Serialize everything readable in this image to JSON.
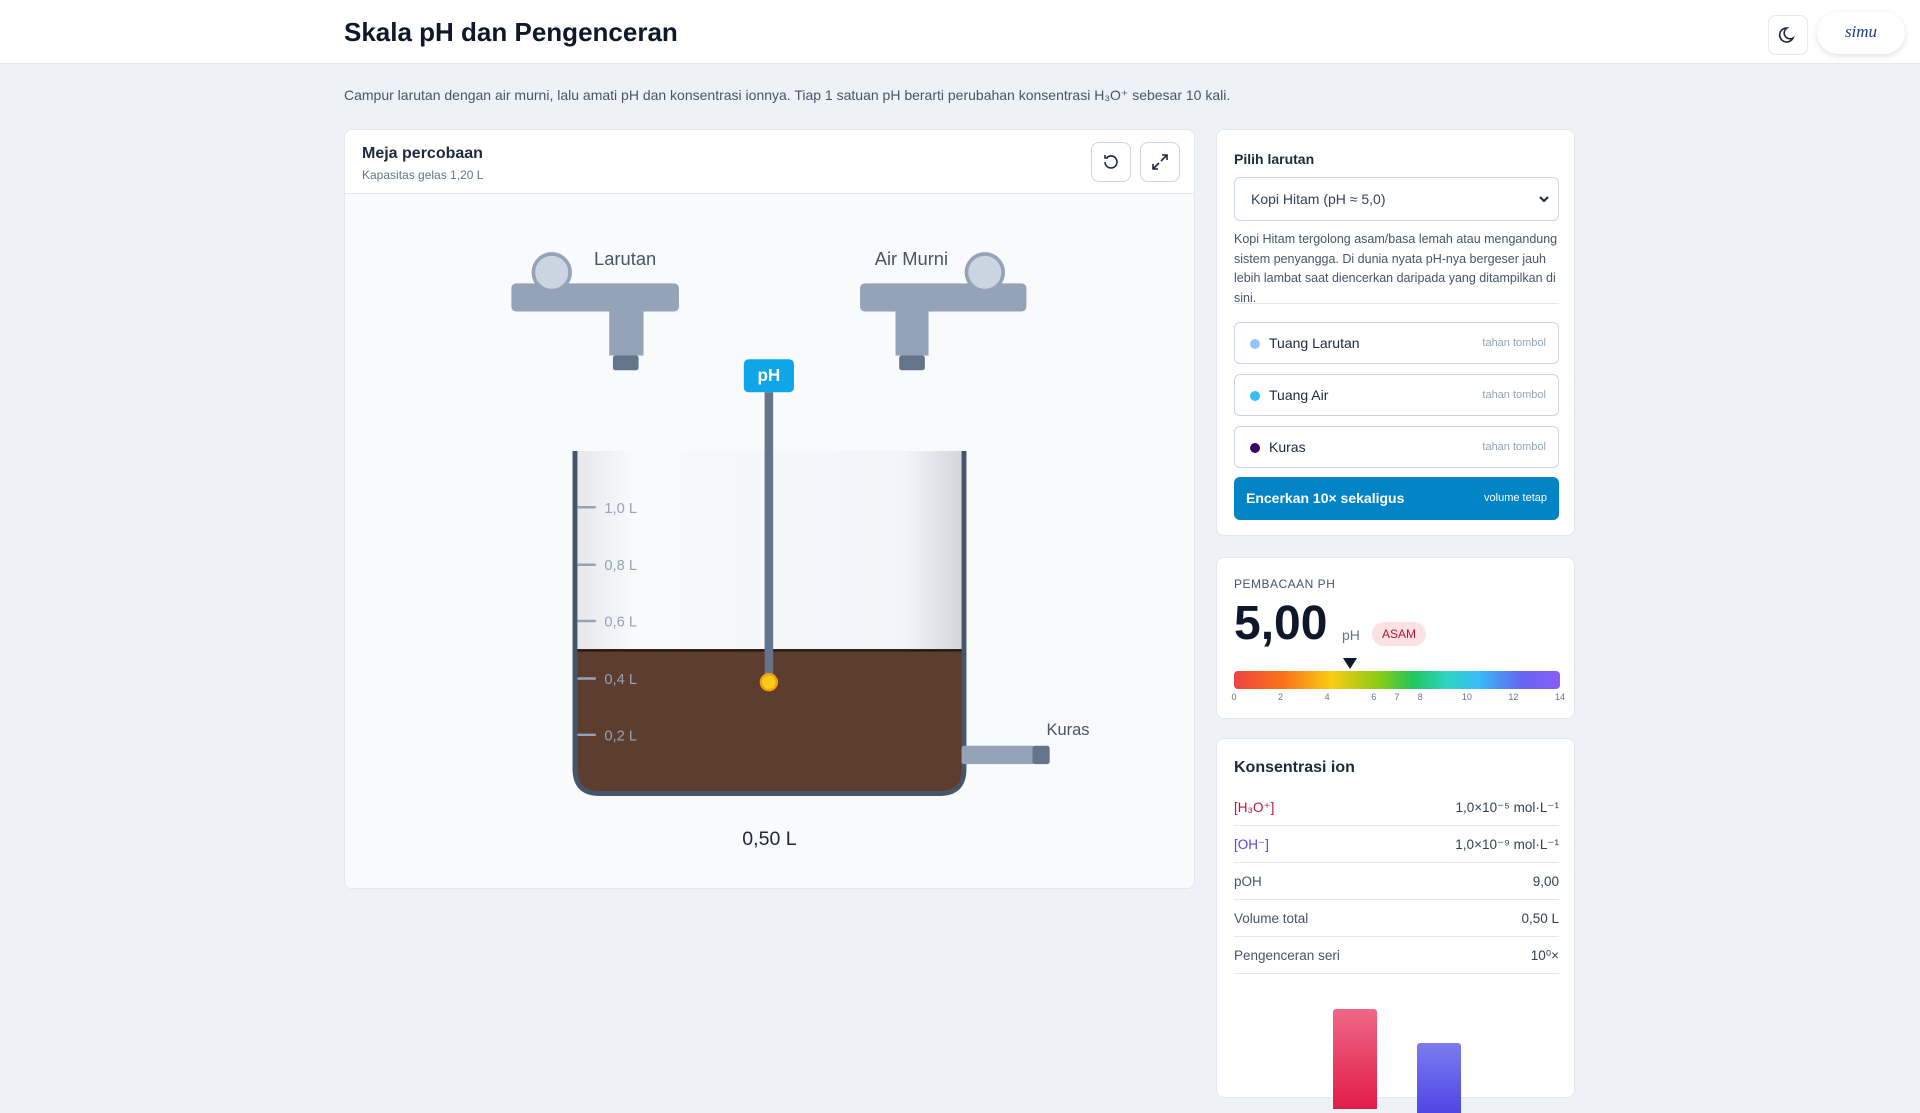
{
  "header": {
    "title": "Skala pH dan Pengenceran",
    "logo": "simu"
  },
  "intro": "Campur larutan dengan air murni, lalu amati pH dan konsentrasi ionnya. Tiap 1 satuan pH berarti perubahan konsentrasi H₃O⁺ sebesar 10 kali.",
  "bench": {
    "title": "Meja percobaan",
    "subtitle": "Kapasitas gelas 1,20 L",
    "tap_left": "Larutan",
    "tap_right": "Air Murni",
    "probe": "pH",
    "scale": [
      "1,0 L",
      "0,8 L",
      "0,6 L",
      "0,4 L",
      "0,2 L"
    ],
    "drain": "Kuras",
    "volume": "0,50 L"
  },
  "controls": {
    "label": "Pilih larutan",
    "selected": "Kopi Hitam (pH ≈ 5,0)",
    "description": "Kopi Hitam tergolong asam/basa lemah atau mengandung sistem penyangga. Di dunia nyata pH-nya bergeser jauh lebih lambat saat diencerkan daripada yang ditampilkan di sini.",
    "buttons": [
      {
        "label": "Tuang Larutan",
        "hint": "tahan tombol"
      },
      {
        "label": "Tuang Air",
        "hint": "tahan tombol"
      },
      {
        "label": "Kuras",
        "hint": "tahan tombol"
      }
    ],
    "dilute": {
      "label": "Encerkan 10× sekaligus",
      "hint": "volume tetap"
    }
  },
  "reading": {
    "label": "PEMBACAAN PH",
    "value": "5,00",
    "unit": "pH",
    "badge": "ASAM",
    "scale_ticks": [
      "0",
      "2",
      "4",
      "6",
      "7",
      "8",
      "10",
      "12",
      "14"
    ]
  },
  "ions": {
    "title": "Konsentrasi ion",
    "rows": [
      {
        "label": "[H₃O⁺]",
        "value": "1,0×10⁻⁵ mol·L⁻¹"
      },
      {
        "label": "[OH⁻]",
        "value": "1,0×10⁻⁹ mol·L⁻¹"
      },
      {
        "label": "pOH",
        "value": "9,00"
      },
      {
        "label": "Volume total",
        "value": "0,50 L"
      },
      {
        "label": "Pengenceran seri",
        "value": "10⁰×"
      }
    ]
  }
}
